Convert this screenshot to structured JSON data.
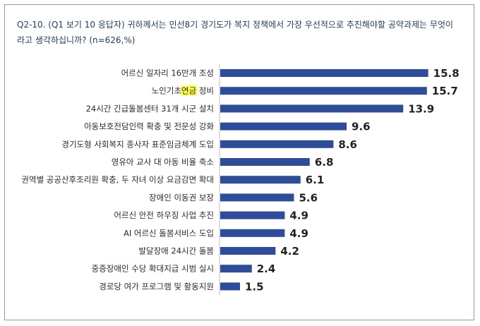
{
  "title": "Q2-10. (Q1 보기 10 응답자) 귀하께서는 민선8기 경기도가 복지 정책에서 가장 우선적으로 추진해야할 공약과제는 무엇이\n라고 생각하십니까?   (n=626,%)",
  "colors": {
    "bar": "#2d4d9a",
    "highlight": "#ffff55",
    "title": "#1f3a5a"
  },
  "chart_data": {
    "type": "bar",
    "orientation": "horizontal",
    "title": "Q2-10. (Q1 보기 10 응답자) 귀하께서는 민선8기 경기도가 복지 정책에서 가장 우선적으로 추진해야할 공약과제는 무엇이라고 생각하십니까?   (n=626,%)",
    "categories": [
      "어르신 일자리 16만개 조성",
      "노인기초연금 정비",
      "24시간 긴급돌봄센터 31개 시군 설치",
      "아동보호전담인력 확충 및 전문성 강화",
      "경기도형 사회복지 종사자 표준임금체계 도입",
      "영유아 교사 대 아동 비율 축소",
      "권역별 공공산후조리원 확충, 두 자녀 이상 요금감면 확대",
      "장애인 이동권 보장",
      "어르신 안전 하우징 사업 추진",
      "AI 어르신 돌봄서비스 도입",
      "발달장애 24시간 돌봄",
      "중증장애인 수당 확대지급 시범 실시",
      "경로당 여가 프로그램 및 활동지원"
    ],
    "values": [
      15.8,
      15.7,
      13.9,
      9.6,
      8.6,
      6.8,
      6.1,
      5.6,
      4.9,
      4.9,
      4.2,
      2.4,
      1.5
    ],
    "value_labels": [
      "15.8",
      "15.7",
      "13.9",
      "9.6",
      "8.6",
      "6.8",
      "6.1",
      "5.6",
      "4.9",
      "4.9",
      "4.2",
      "2.4",
      "1.5"
    ],
    "highlighted_text": {
      "category_index": 1,
      "text": "연금"
    },
    "xlim": [
      0,
      16.5
    ],
    "grid": false,
    "legend": "none"
  }
}
